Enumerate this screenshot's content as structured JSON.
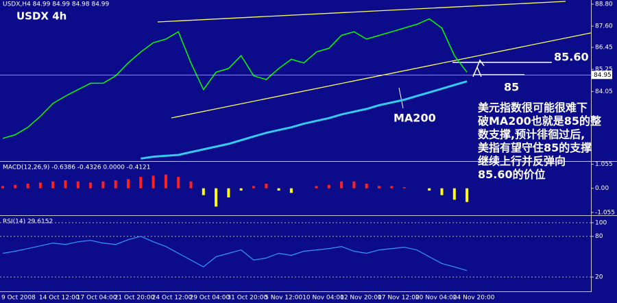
{
  "chart_data": [
    {
      "type": "line",
      "title": "USDX 4h",
      "subtitle": "USDX,H4 84.99 84.99 84.98 84.99",
      "categories": [
        "9 Oct 2008",
        null,
        null,
        "14 Oct 12:00",
        null,
        null,
        "17 Oct 04:00",
        null,
        null,
        "21 Oct 20:00",
        null,
        null,
        "24 Oct 12:00",
        null,
        null,
        "29 Oct 04:00",
        null,
        null,
        "31 Oct 20:00",
        null,
        null,
        "5 Nov 12:00",
        null,
        null,
        "10 Nov 04:00",
        null,
        null,
        "12 Nov 20:00",
        null,
        null,
        "17 Nov 12:00",
        null,
        null,
        "20 Nov 04:00",
        null,
        null,
        "24 Nov 20:00",
        null
      ],
      "series": [
        {
          "color": "#00ff00",
          "values": [
            81.5,
            81.7,
            82.1,
            82.7,
            83.4,
            83.8,
            84.15,
            84.5,
            84.5,
            84.9,
            85.6,
            86.2,
            86.7,
            86.9,
            87.3,
            85.6,
            84.15,
            85.1,
            85.3,
            86.0,
            84.9,
            84.7,
            85.3,
            85.8,
            85.6,
            86.2,
            86.4,
            87.1,
            87.3,
            86.9,
            87.1,
            87.3,
            87.5,
            87.7,
            88.0,
            87.5,
            86.0,
            85.1
          ]
        },
        {
          "name": "MA200",
          "color": "#33ccee",
          "values": [
            null,
            null,
            null,
            null,
            null,
            null,
            null,
            null,
            null,
            null,
            null,
            80.4,
            80.5,
            80.55,
            80.6,
            80.75,
            80.9,
            81.05,
            81.2,
            81.4,
            81.6,
            81.8,
            81.95,
            82.1,
            82.3,
            82.45,
            82.6,
            82.8,
            82.95,
            83.1,
            83.3,
            83.45,
            83.6,
            83.8,
            84.0,
            84.2,
            84.4,
            84.6
          ]
        }
      ],
      "ylim": [
        80.3,
        88.95
      ],
      "yticks": [
        {
          "value": 88.8,
          "label": "88.80"
        },
        {
          "value": 87.6,
          "label": "87.60"
        },
        86.45,
        85.25,
        84.05
      ],
      "current_price": 84.95,
      "annotations": [
        "85.60",
        "85"
      ],
      "comment": [
        "美元指数很可能很难下",
        "破MA200也就是85的整",
        "数支撑,预计徘徊过后,",
        "美指有望守住85的支撑",
        "继续上行并反弹向",
        "85.60的价位"
      ]
    },
    {
      "type": "bar",
      "title": "MACD(12,26,9) -0.6386 -0.4326 0.0000 -0.4121",
      "values": [
        0.1,
        0.15,
        0.2,
        0.25,
        0.3,
        0.35,
        0.3,
        0.25,
        0.3,
        0.35,
        0.4,
        0.5,
        0.55,
        0.6,
        0.5,
        0.3,
        -0.3,
        -0.8,
        -0.4,
        -0.1,
        0.1,
        0.2,
        -0.1,
        -0.2,
        0.0,
        0.1,
        0.15,
        0.3,
        0.3,
        0.2,
        0.1,
        0.1,
        0.05,
        0.0,
        -0.1,
        -0.3,
        -0.5,
        -0.6
      ],
      "up_color": "#ff2020",
      "down_color": "#ffff00",
      "ylim": [
        -1.15,
        1.1
      ],
      "yticks": [
        1.055,
        {
          "value": 0,
          "label": "0.00"
        },
        -1.055
      ]
    },
    {
      "type": "line",
      "title": "RSI(14) 29.6152",
      "color": "#3399ff",
      "values": [
        55,
        58,
        62,
        66,
        70,
        68,
        72,
        74,
        70,
        68,
        75,
        80,
        72,
        65,
        55,
        45,
        35,
        50,
        55,
        60,
        45,
        48,
        55,
        52,
        58,
        60,
        62,
        65,
        58,
        55,
        60,
        62,
        64,
        60,
        50,
        40,
        35,
        29.6152
      ],
      "ylim": [
        0,
        108
      ],
      "yticks": [
        100,
        80,
        20
      ],
      "grid": true
    }
  ]
}
